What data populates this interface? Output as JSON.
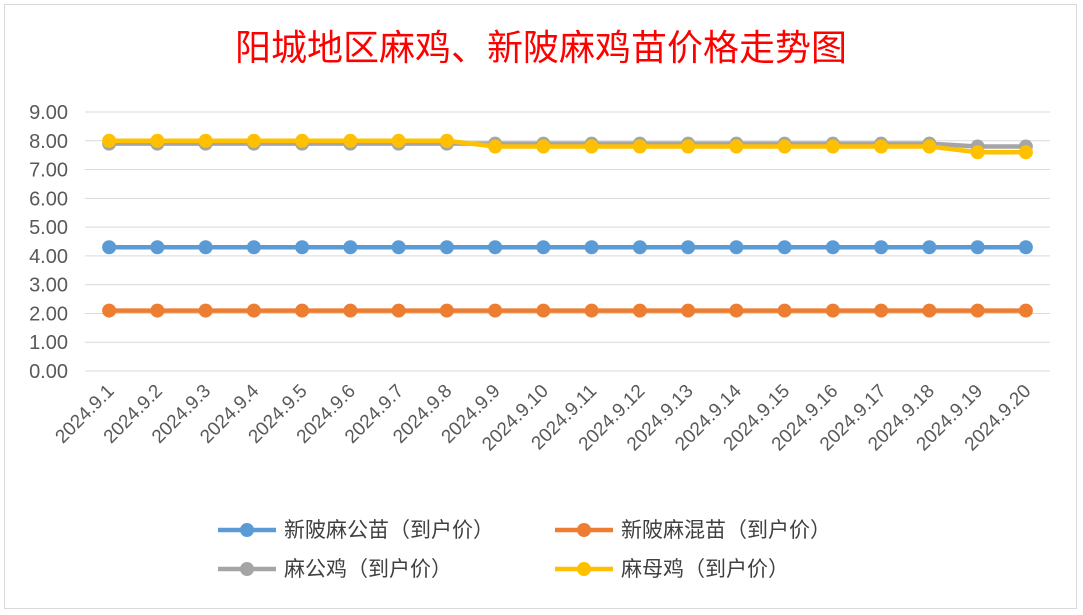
{
  "chart_data": {
    "type": "line",
    "title": "阳城地区麻鸡、新陂麻鸡苗价格走势图",
    "xlabel": "",
    "ylabel": "",
    "ylim": [
      0,
      9
    ],
    "y_ticks": [
      "0.00",
      "1.00",
      "2.00",
      "3.00",
      "4.00",
      "5.00",
      "6.00",
      "7.00",
      "8.00",
      "9.00"
    ],
    "categories": [
      "2024.9.1",
      "2024.9.2",
      "2024.9.3",
      "2024.9.4",
      "2024.9.5",
      "2024.9.6",
      "2024.9.7",
      "2024.9.8",
      "2024.9.9",
      "2024.9.10",
      "2024.9.11",
      "2024.9.12",
      "2024.9.13",
      "2024.9.14",
      "2024.9.15",
      "2024.9.16",
      "2024.9.17",
      "2024.9.18",
      "2024.9.19",
      "2024.9.20"
    ],
    "grid": true,
    "legend_position": "bottom",
    "series": [
      {
        "name": "新陂麻公苗（到户价）",
        "color": "#5b9bd5",
        "values": [
          4.3,
          4.3,
          4.3,
          4.3,
          4.3,
          4.3,
          4.3,
          4.3,
          4.3,
          4.3,
          4.3,
          4.3,
          4.3,
          4.3,
          4.3,
          4.3,
          4.3,
          4.3,
          4.3,
          4.3
        ]
      },
      {
        "name": "新陂麻混苗（到户价）",
        "color": "#ed7d31",
        "values": [
          2.1,
          2.1,
          2.1,
          2.1,
          2.1,
          2.1,
          2.1,
          2.1,
          2.1,
          2.1,
          2.1,
          2.1,
          2.1,
          2.1,
          2.1,
          2.1,
          2.1,
          2.1,
          2.1,
          2.1
        ]
      },
      {
        "name": "麻公鸡（到户价）",
        "color": "#a5a5a5",
        "values": [
          7.9,
          7.9,
          7.9,
          7.9,
          7.9,
          7.9,
          7.9,
          7.9,
          7.9,
          7.9,
          7.9,
          7.9,
          7.9,
          7.9,
          7.9,
          7.9,
          7.9,
          7.9,
          7.8,
          7.8
        ]
      },
      {
        "name": "麻母鸡（到户价）",
        "color": "#ffc000",
        "values": [
          8.0,
          8.0,
          8.0,
          8.0,
          8.0,
          8.0,
          8.0,
          8.0,
          7.8,
          7.8,
          7.8,
          7.8,
          7.8,
          7.8,
          7.8,
          7.8,
          7.8,
          7.8,
          7.6,
          7.6
        ]
      }
    ]
  }
}
